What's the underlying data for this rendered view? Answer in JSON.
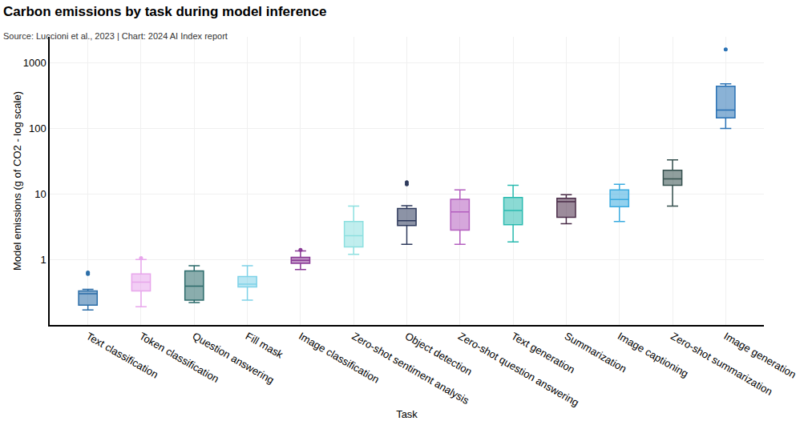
{
  "chart_data": {
    "type": "box",
    "title": "Carbon emissions by task during model inference",
    "subtitle": "Source: Luccioni et al., 2023 | Chart: 2024 AI Index report",
    "x_label": "Task",
    "y_label": "Model emissions (g of CO2 - log scale)",
    "categories": [
      "Text classification",
      "Token classification",
      "Question answering",
      "Fill mask",
      "Image classification",
      "Zero-shot sentiment analysis",
      "Object detection",
      "Zero-shot question answering",
      "Text generation",
      "Summarization",
      "Image captioning",
      "Zero-shot summarization",
      "Image generation"
    ],
    "lower": [
      0.17,
      0.19,
      0.22,
      0.24,
      0.7,
      1.2,
      1.7,
      1.7,
      1.85,
      3.5,
      3.8,
      6.5,
      100
    ],
    "q1": [
      0.2,
      0.33,
      0.24,
      0.38,
      0.87,
      1.55,
      3.3,
      2.8,
      3.4,
      4.4,
      6.4,
      13.5,
      145
    ],
    "median": [
      0.3,
      0.45,
      0.39,
      0.42,
      0.97,
      2.3,
      3.9,
      5.3,
      5.6,
      7.6,
      8.2,
      17,
      190
    ],
    "q3": [
      0.33,
      0.6,
      0.67,
      0.55,
      1.08,
      3.8,
      6.0,
      8.3,
      8.8,
      8.6,
      11.5,
      23,
      440
    ],
    "upper": [
      0.35,
      1.0,
      0.8,
      0.8,
      1.35,
      6.5,
      6.6,
      11.5,
      13.5,
      9.7,
      14,
      33,
      480
    ],
    "outliers": [
      [
        0.6,
        0.63
      ],
      [
        1.05
      ],
      [],
      [],
      [
        1.4
      ],
      [],
      [
        14,
        15
      ],
      [],
      [],
      [],
      [],
      [],
      [
        1600
      ]
    ],
    "colors": [
      "#2c6ea8",
      "#e8a6ec",
      "#2a6a6a",
      "#7fd2e8",
      "#8a3a96",
      "#8de0e0",
      "#2e3a5c",
      "#b45fbf",
      "#2bbbb0",
      "#4a2c48",
      "#3aabe0",
      "#35504e",
      "#2a72b5"
    ],
    "log": "y",
    "ylim": [
      0.1,
      2500
    ],
    "yticks": [
      1,
      10,
      100,
      1000
    ],
    "grid": true
  }
}
